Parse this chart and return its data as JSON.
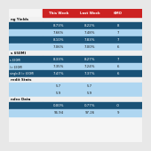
{
  "bg_color": "#e8e8e8",
  "header_bg": "#cc2222",
  "header_text_color": "#ffffff",
  "header_cols": [
    "This Week",
    "Last Week",
    "6MO"
  ],
  "dark_blue": "#1a5276",
  "mid_blue": "#2e86c1",
  "light_blue": "#aed6f1",
  "section_label_bg": "#d8d8d8",
  "sections": [
    {
      "label": "ng Yields",
      "rows": [
        {
          "left_bg": "#1a5276",
          "right_bg": "#1a5276",
          "left_text": "",
          "values": [
            "8.73%",
            "8.22%",
            "8"
          ],
          "text_color": "#ffffff"
        },
        {
          "left_bg": "#aed6f1",
          "right_bg": "#aed6f1",
          "left_text": "",
          "values": [
            "7.66%",
            "7.48%",
            "7"
          ],
          "text_color": "#1a1a1a"
        },
        {
          "left_bg": "#1a5276",
          "right_bg": "#1a5276",
          "left_text": "",
          "values": [
            "8.10%",
            "7.83%",
            "7"
          ],
          "text_color": "#ffffff"
        },
        {
          "left_bg": "#aed6f1",
          "right_bg": "#aed6f1",
          "left_text": "",
          "values": [
            "7.06%",
            "7.00%",
            "6"
          ],
          "text_color": "#1a1a1a"
        }
      ]
    },
    {
      "label": "s $50M)",
      "rows": [
        {
          "left_bg": "#1a5276",
          "right_bg": "#1a5276",
          "left_text": "s $50M)",
          "values": [
            "8.33%",
            "8.27%",
            "7"
          ],
          "text_color": "#ffffff"
        },
        {
          "left_bg": "#aed6f1",
          "right_bg": "#aed6f1",
          "left_text": "(> $50M)",
          "values": [
            "7.35%",
            "7.24%",
            "6"
          ],
          "text_color": "#1a1a1a"
        },
        {
          "left_bg": "#1a5276",
          "right_bg": "#1a5276",
          "left_text": "single-B (> $50M)",
          "values": [
            "7.47%",
            "7.37%",
            "6"
          ],
          "text_color": "#ffffff"
        }
      ]
    },
    {
      "label": "redit Stats",
      "rows": [
        {
          "left_bg": "#aed6f1",
          "right_bg": "#aed6f1",
          "left_text": "",
          "values": [
            "5.7",
            "5.7",
            ""
          ],
          "text_color": "#1a1a1a"
        },
        {
          "left_bg": "#aed6f1",
          "right_bg": "#aed6f1",
          "left_text": "",
          "values": [
            "5.9",
            "5.9",
            ""
          ],
          "text_color": "#1a1a1a"
        }
      ]
    },
    {
      "label": "ndex Data",
      "rows": [
        {
          "left_bg": "#1a5276",
          "right_bg": "#1a5276",
          "left_text": "",
          "values": [
            "0.00%",
            "0.77%",
            "-0"
          ],
          "text_color": "#ffffff"
        },
        {
          "left_bg": "#aed6f1",
          "right_bg": "#aed6f1",
          "left_text": "",
          "values": [
            "96.94",
            "97.26",
            "9"
          ],
          "text_color": "#1a1a1a"
        }
      ]
    }
  ]
}
